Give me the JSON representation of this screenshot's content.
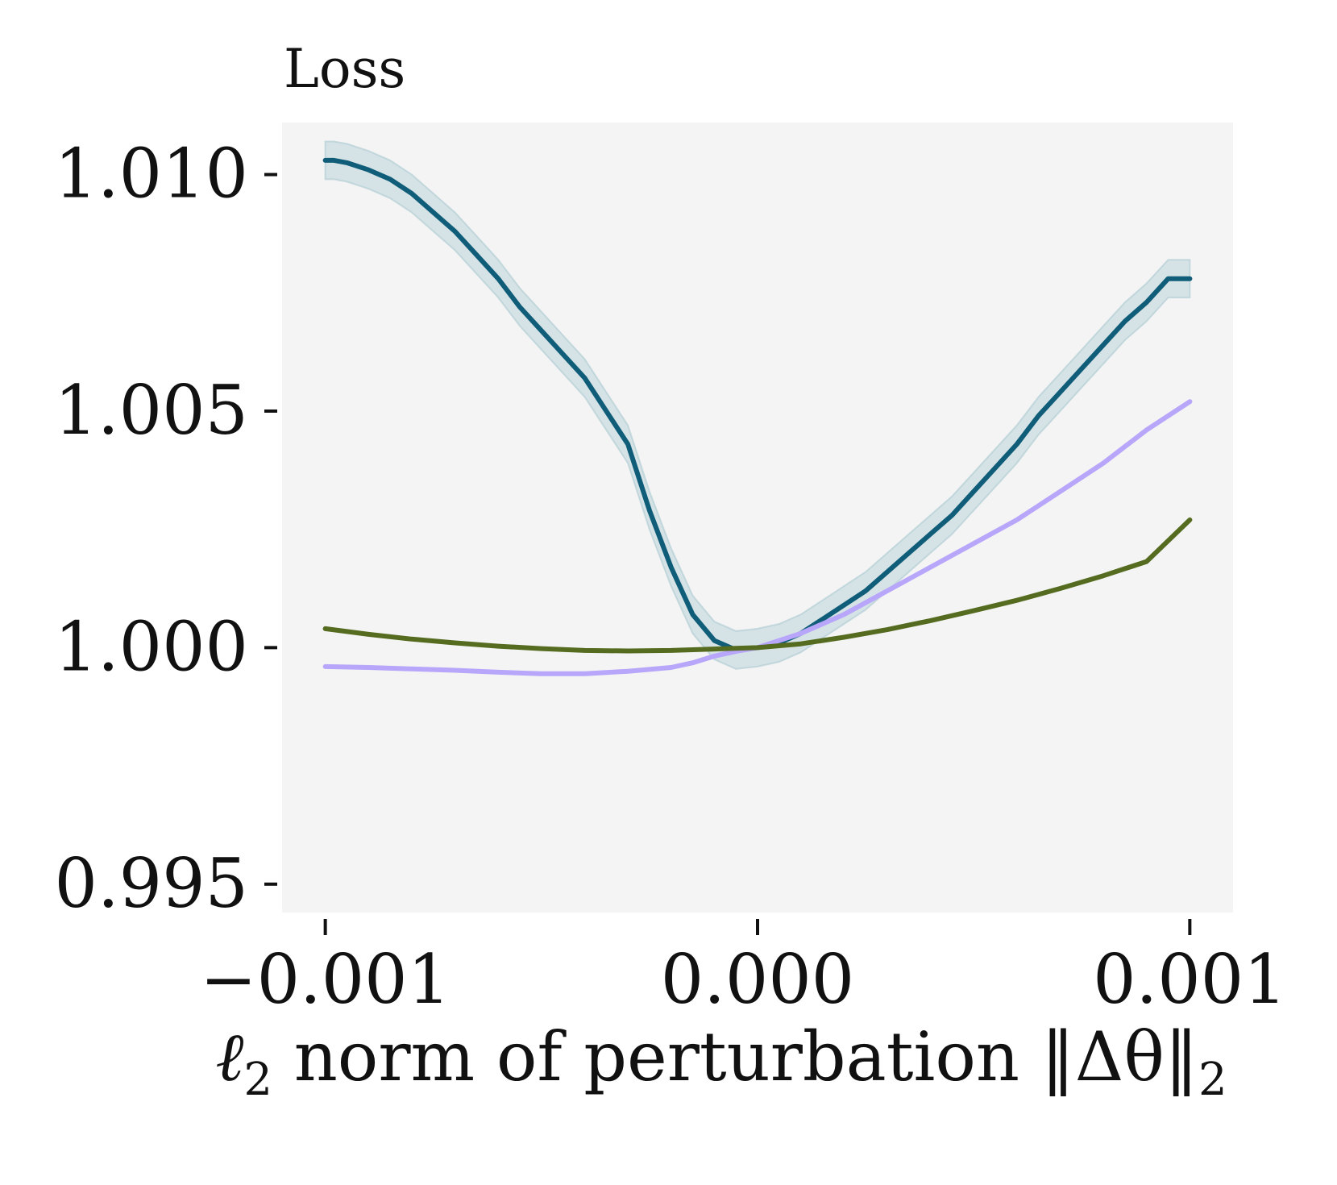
{
  "chart_data": {
    "type": "line",
    "title": "Loss",
    "xlabel_parts": {
      "ell": "ℓ",
      "sub": "2",
      "text": " norm of perturbation ",
      "norm": "‖Δθ‖",
      "norm_sub": "2"
    },
    "ylabel": "",
    "xlim": [
      -0.0011,
      0.0011
    ],
    "ylim": [
      0.9944,
      1.0111
    ],
    "xticks": [
      {
        "value": -0.001,
        "label": "−0.001"
      },
      {
        "value": 0.0,
        "label": "0.000"
      },
      {
        "value": 0.001,
        "label": "0.001"
      }
    ],
    "yticks": [
      {
        "value": 0.995,
        "label": "0.995"
      },
      {
        "value": 1.0,
        "label": "1.000"
      },
      {
        "value": 1.005,
        "label": "1.005"
      },
      {
        "value": 1.01,
        "label": "1.010"
      }
    ],
    "background": "#f4f4f4",
    "series": [
      {
        "name": "series-teal",
        "color": "#0f5d78",
        "band_color": "#9fc4cc",
        "band_halfwidth": 0.0004,
        "x": [
          -0.001,
          -0.00098,
          -0.00095,
          -0.0009,
          -0.00085,
          -0.0008,
          -0.00075,
          -0.0007,
          -0.00065,
          -0.0006,
          -0.00055,
          -0.0005,
          -0.00045,
          -0.0004,
          -0.00035,
          -0.0003,
          -0.00025,
          -0.0002,
          -0.00015,
          -0.0001,
          -5e-05,
          -2e-05,
          0.0,
          5e-05,
          0.0001,
          0.00015,
          0.0002,
          0.00025,
          0.0003,
          0.00035,
          0.0004,
          0.00045,
          0.0005,
          0.00055,
          0.0006,
          0.00065,
          0.0007,
          0.00075,
          0.0008,
          0.00085,
          0.0009,
          0.00095,
          0.001
        ],
        "y": [
          1.0103,
          1.0103,
          1.01025,
          1.0101,
          1.0099,
          1.0096,
          1.0092,
          1.0088,
          1.0083,
          1.0078,
          1.0072,
          1.0067,
          1.0062,
          1.0057,
          1.005,
          1.0043,
          1.0029,
          1.0017,
          1.0007,
          1.00015,
          0.99995,
          0.99998,
          1.0,
          1.0001,
          1.0003,
          1.0006,
          1.0009,
          1.0012,
          1.0016,
          1.002,
          1.0024,
          1.0028,
          1.0033,
          1.0038,
          1.0043,
          1.0049,
          1.0054,
          1.0059,
          1.0064,
          1.0069,
          1.0073,
          1.0078,
          1.0078
        ]
      },
      {
        "name": "series-lavender",
        "color": "#b8a6fa",
        "x": [
          -0.001,
          -0.0009,
          -0.0008,
          -0.0007,
          -0.0006,
          -0.0005,
          -0.0004,
          -0.0003,
          -0.0002,
          -0.00015,
          -0.0001,
          -5e-05,
          0.0,
          0.0001,
          0.0002,
          0.0003,
          0.0004,
          0.0005,
          0.0006,
          0.0007,
          0.0008,
          0.0009,
          0.001
        ],
        "y": [
          0.9996,
          0.99958,
          0.99955,
          0.99952,
          0.99948,
          0.99945,
          0.99945,
          0.9995,
          0.99958,
          0.99968,
          0.99982,
          0.99992,
          1.0,
          1.0003,
          1.0007,
          1.0012,
          1.0017,
          1.0022,
          1.0027,
          1.0033,
          1.0039,
          1.0046,
          1.0052
        ]
      },
      {
        "name": "series-olive",
        "color": "#556b1f",
        "x": [
          -0.001,
          -0.0009,
          -0.0008,
          -0.0007,
          -0.0006,
          -0.0005,
          -0.0004,
          -0.0003,
          -0.0002,
          -0.0001,
          0.0,
          0.0001,
          0.0002,
          0.0003,
          0.0004,
          0.0005,
          0.0006,
          0.0007,
          0.0008,
          0.0009,
          0.001
        ],
        "y": [
          1.0004,
          1.00028,
          1.00018,
          1.0001,
          1.00003,
          0.99998,
          0.99994,
          0.99993,
          0.99994,
          0.99997,
          1.0,
          1.00008,
          1.00022,
          1.00038,
          1.00057,
          1.00078,
          1.001,
          1.00125,
          1.00152,
          1.00182,
          1.0027
        ]
      }
    ]
  }
}
